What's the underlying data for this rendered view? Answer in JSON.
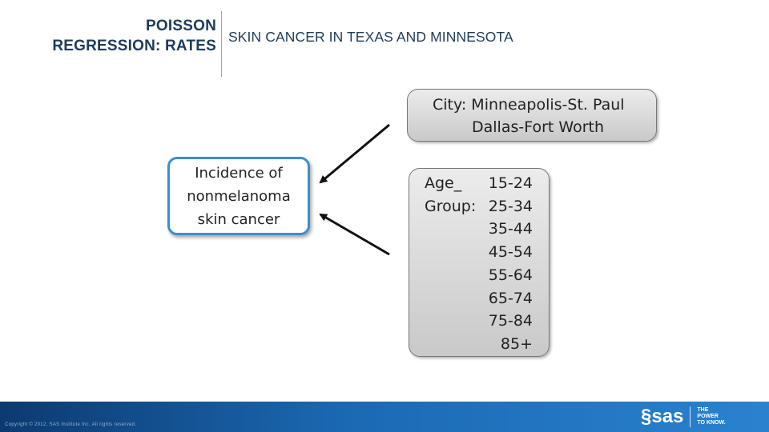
{
  "header": {
    "title_line1": "POISSON",
    "title_line2": "REGRESSION: RATES",
    "subtitle": "SKIN CANCER IN TEXAS AND MINNESOTA"
  },
  "outcome": {
    "lines": [
      "Incidence of",
      "nonmelanoma",
      "skin cancer"
    ]
  },
  "city": {
    "lines": [
      "City: Minneapolis-St. Paul",
      "Dallas-Fort Worth"
    ]
  },
  "age_group": {
    "label_line1": "Age_",
    "label_line2": "Group:",
    "values": [
      "15-24",
      "25-34",
      "35-44",
      "45-54",
      "55-64",
      "65-74",
      "75-84",
      "85+"
    ]
  },
  "footer": {
    "copyright": "Copyright © 2012, SAS Institute Inc. All rights reserved.",
    "logo_text": "sas",
    "tagline": [
      "THE",
      "POWER",
      "TO KNOW."
    ]
  },
  "colors": {
    "title": "#1f3b5a",
    "outcome_border": "#3a8fd1",
    "footer_blue": "#1b69b3"
  }
}
